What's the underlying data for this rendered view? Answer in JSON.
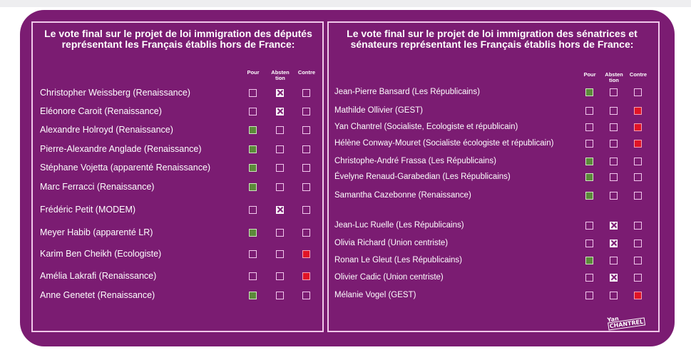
{
  "deputes": {
    "title": "Le vote final sur le projet de loi immigration des députés représentant les Français établis hors de France:",
    "headers": [
      "Pour",
      "Absten tion",
      "Contre"
    ],
    "rows": [
      {
        "name": "Christopher Weissberg (Renaissance)",
        "vote": "abst"
      },
      {
        "name": "Eléonore Caroit (Renaissance)",
        "vote": "abst"
      },
      {
        "name": "Alexandre Holroyd (Renaissance)",
        "vote": "pour"
      },
      {
        "name": "Pierre-Alexandre Anglade (Renaissance)",
        "vote": "pour"
      },
      {
        "name": "Stéphane Vojetta (apparenté Renaissance)",
        "vote": "pour"
      },
      {
        "name": "Marc Ferracci (Renaissance)",
        "vote": "pour"
      },
      {
        "name": "Frédéric Petit (MODEM)",
        "vote": "abst"
      },
      {
        "name": "Meyer Habib (apparenté LR)",
        "vote": "pour"
      },
      {
        "name": "Karim Ben Cheikh (Ecologiste)",
        "vote": "contre"
      },
      {
        "name": "Amélia Lakrafi (Renaissance)",
        "vote": "contre"
      },
      {
        "name": "Anne Genetet (Renaissance)",
        "vote": "pour"
      }
    ]
  },
  "senateurs": {
    "title": "Le vote final sur le projet de loi immigration des sénatrices et sénateurs représentant les Français établis hors de France:",
    "headers": [
      "Pour",
      "Absten tion",
      "Contre"
    ],
    "rows": [
      {
        "name": "Jean-Pierre Bansard (Les Républicains)",
        "vote": "pour"
      },
      {
        "name": "Mathilde Ollivier  (GEST)",
        "vote": "contre"
      },
      {
        "name": "Yan Chantrel (Socialiste, Ecologiste et républicain)",
        "vote": "contre"
      },
      {
        "name": "Hélène Conway-Mouret (Socialiste écologiste et républicain)",
        "vote": "contre"
      },
      {
        "name": "Christophe-André Frassa (Les Républicains)",
        "vote": "pour"
      },
      {
        "name": "Évelyne Renaud-Garabedian (Les Républicains)",
        "vote": "pour"
      },
      {
        "name": "Samantha Cazebonne (Renaissance)",
        "vote": "pour"
      },
      {
        "name": "Jean-Luc Ruelle (Les Républicains)",
        "vote": "abst"
      },
      {
        "name": "Olivia Richard (Union centriste)",
        "vote": "abst"
      },
      {
        "name": "Ronan Le Gleut (Les Républicains)",
        "vote": "pour"
      },
      {
        "name": "Olivier Cadic (Union centriste)",
        "vote": "abst"
      },
      {
        "name": "Mélanie Vogel (GEST)",
        "vote": "contre"
      }
    ]
  },
  "logo": {
    "line1": "Yan",
    "line2": "CHANTREL"
  },
  "colors": {
    "background": "#7b1c72",
    "pour": "#5c8a3a",
    "contre": "#e01426",
    "border": "#f1c8ea"
  }
}
